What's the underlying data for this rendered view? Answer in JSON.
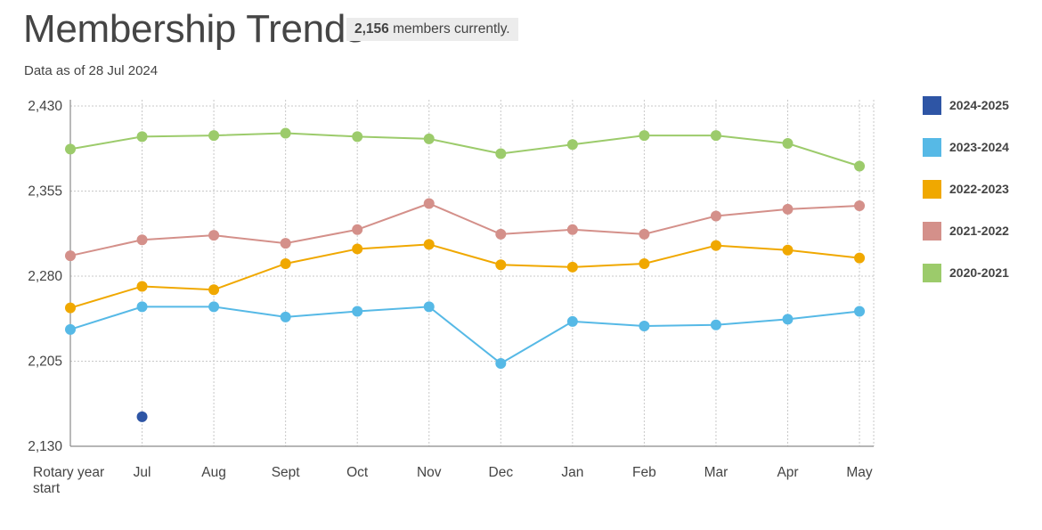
{
  "header": {
    "title": "Membership Trends",
    "badge_count": "2,156",
    "badge_text": "members currently.",
    "as_of": "Data as of 28 Jul 2024"
  },
  "chart_data": {
    "type": "line",
    "title": "Membership Trends",
    "xlabel": "",
    "ylabel": "",
    "categories": [
      "Rotary year start",
      "Jul",
      "Aug",
      "Sept",
      "Oct",
      "Nov",
      "Dec",
      "Jan",
      "Feb",
      "Mar",
      "Apr",
      "May"
    ],
    "y_ticks": [
      "2,130",
      "2,205",
      "2,280",
      "2,355",
      "2,430"
    ],
    "ylim": [
      2130,
      2430
    ],
    "grid": true,
    "legend_position": "right",
    "series": [
      {
        "name": "2024-2025",
        "color": "#2e55a5",
        "values": [
          null,
          2156,
          null,
          null,
          null,
          null,
          null,
          null,
          null,
          null,
          null,
          null
        ]
      },
      {
        "name": "2023-2024",
        "color": "#56b9e6",
        "values": [
          2233,
          2253,
          2253,
          2244,
          2249,
          2253,
          2203,
          2240,
          2236,
          2237,
          2242,
          2249
        ]
      },
      {
        "name": "2022-2023",
        "color": "#f0a800",
        "values": [
          2252,
          2271,
          2268,
          2291,
          2304,
          2308,
          2290,
          2288,
          2291,
          2307,
          2303,
          2296
        ]
      },
      {
        "name": "2021-2022",
        "color": "#d4908a",
        "values": [
          2298,
          2312,
          2316,
          2309,
          2321,
          2344,
          2317,
          2321,
          2317,
          2333,
          2339,
          2342
        ]
      },
      {
        "name": "2020-2021",
        "color": "#9ccb6b",
        "values": [
          2392,
          2403,
          2404,
          2406,
          2403,
          2401,
          2388,
          2396,
          2404,
          2404,
          2397,
          2377
        ]
      }
    ]
  }
}
